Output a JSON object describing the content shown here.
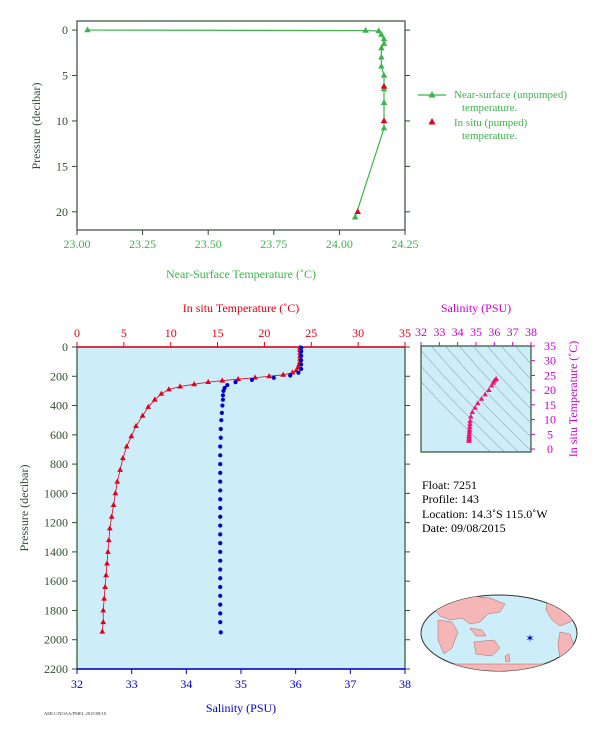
{
  "colors": {
    "green": "#3cb44b",
    "red": "#e0001b",
    "blue": "#0000cc",
    "magenta": "#cc00cc",
    "pink": "#ee1177",
    "axis_dark": "#2f4f2f",
    "plot_bg": "#cdeef8",
    "map_ocean": "#cdeef8",
    "map_land": "#f4b6b6"
  },
  "chart_data": [
    {
      "type": "line",
      "xlabel": "Near-Surface Temperature (˚C)",
      "ylabel": "Pressure (decibar)",
      "xlim": [
        23.0,
        24.25
      ],
      "ylim": [
        22,
        -1
      ],
      "x_ticks": [
        "23.00",
        "23.25",
        "23.50",
        "23.75",
        "24.00",
        "24.25"
      ],
      "y_ticks": [
        "0",
        "5",
        "10",
        "15",
        "20"
      ],
      "series": [
        {
          "name": "Near-surface (unpumped) temperature.",
          "marker": "triangle",
          "points": [
            [
              23.04,
              0.0
            ],
            [
              24.1,
              0.05
            ],
            [
              24.15,
              0.1
            ],
            [
              24.16,
              0.5
            ],
            [
              24.17,
              1.0
            ],
            [
              24.17,
              1.5
            ],
            [
              24.16,
              2.0
            ],
            [
              24.16,
              3.0
            ],
            [
              24.16,
              4.0
            ],
            [
              24.17,
              5.0
            ],
            [
              24.17,
              6.5
            ],
            [
              24.17,
              8.0
            ],
            [
              24.17,
              10.0
            ],
            [
              24.17,
              10.8
            ],
            [
              24.06,
              20.6
            ]
          ]
        },
        {
          "name": "In situ (pumped) temperature.",
          "marker": "triangle",
          "points": [
            [
              24.17,
              6.2
            ],
            [
              24.17,
              10.0
            ],
            [
              24.07,
              20.0
            ]
          ]
        }
      ],
      "legend": [
        "Near-surface (unpumped)",
        "temperature.",
        "In situ (pumped)",
        "temperature."
      ]
    },
    {
      "type": "line",
      "title": "In situ Temperature (˚C)",
      "xlabel": "Salinity (PSU)",
      "ylabel": "Pressure (decibar)",
      "temp_lim": [
        0,
        35
      ],
      "sal_lim": [
        32,
        38
      ],
      "ylim": [
        2200,
        0
      ],
      "temp_ticks": [
        "0",
        "5",
        "10",
        "15",
        "20",
        "25",
        "30",
        "35"
      ],
      "sal_ticks": [
        "32",
        "33",
        "34",
        "35",
        "36",
        "37",
        "38"
      ],
      "y_ticks": [
        "0",
        "200",
        "400",
        "600",
        "800",
        "1000",
        "1200",
        "1400",
        "1600",
        "1800",
        "2000",
        "2200"
      ],
      "temperature": [
        [
          23.8,
          5
        ],
        [
          23.8,
          20
        ],
        [
          23.8,
          40
        ],
        [
          23.8,
          60
        ],
        [
          23.8,
          80
        ],
        [
          23.8,
          100
        ],
        [
          23.7,
          120
        ],
        [
          23.6,
          140
        ],
        [
          23.4,
          160
        ],
        [
          23.0,
          175
        ],
        [
          22.0,
          190
        ],
        [
          20.5,
          200
        ],
        [
          19.0,
          210
        ],
        [
          17.2,
          220
        ],
        [
          15.5,
          230
        ],
        [
          14.0,
          240
        ],
        [
          12.5,
          255
        ],
        [
          11.0,
          270
        ],
        [
          9.8,
          290
        ],
        [
          9.0,
          320
        ],
        [
          8.3,
          360
        ],
        [
          7.6,
          410
        ],
        [
          7.0,
          470
        ],
        [
          6.3,
          540
        ],
        [
          5.8,
          610
        ],
        [
          5.3,
          680
        ],
        [
          4.9,
          760
        ],
        [
          4.6,
          840
        ],
        [
          4.3,
          920
        ],
        [
          4.1,
          1000
        ],
        [
          3.9,
          1080
        ],
        [
          3.7,
          1160
        ],
        [
          3.5,
          1240
        ],
        [
          3.4,
          1320
        ],
        [
          3.3,
          1400
        ],
        [
          3.2,
          1480
        ],
        [
          3.1,
          1560
        ],
        [
          3.0,
          1640
        ],
        [
          2.9,
          1720
        ],
        [
          2.8,
          1800
        ],
        [
          2.8,
          1880
        ],
        [
          2.7,
          1945
        ]
      ],
      "salinity": [
        [
          36.1,
          5
        ],
        [
          36.1,
          30
        ],
        [
          36.1,
          60
        ],
        [
          36.1,
          90
        ],
        [
          36.1,
          120
        ],
        [
          36.1,
          150
        ],
        [
          36.05,
          175
        ],
        [
          35.9,
          195
        ],
        [
          35.6,
          210
        ],
        [
          35.2,
          225
        ],
        [
          34.9,
          240
        ],
        [
          34.75,
          260
        ],
        [
          34.7,
          280
        ],
        [
          34.68,
          300
        ],
        [
          34.67,
          330
        ],
        [
          34.67,
          360
        ],
        [
          34.66,
          400
        ],
        [
          34.65,
          450
        ],
        [
          34.64,
          500
        ],
        [
          34.63,
          560
        ],
        [
          34.63,
          620
        ],
        [
          34.62,
          680
        ],
        [
          34.62,
          740
        ],
        [
          34.62,
          800
        ],
        [
          34.62,
          860
        ],
        [
          34.62,
          920
        ],
        [
          34.62,
          980
        ],
        [
          34.62,
          1040
        ],
        [
          34.62,
          1100
        ],
        [
          34.62,
          1160
        ],
        [
          34.62,
          1220
        ],
        [
          34.62,
          1280
        ],
        [
          34.62,
          1340
        ],
        [
          34.62,
          1400
        ],
        [
          34.62,
          1460
        ],
        [
          34.62,
          1520
        ],
        [
          34.62,
          1580
        ],
        [
          34.62,
          1640
        ],
        [
          34.62,
          1700
        ],
        [
          34.62,
          1760
        ],
        [
          34.62,
          1820
        ],
        [
          34.62,
          1880
        ],
        [
          34.63,
          1950
        ]
      ]
    },
    {
      "type": "scatter",
      "title": "Salinity (PSU)",
      "ylabel": "In situ Temperature (˚C)",
      "xlim": [
        32,
        38
      ],
      "ylim": [
        -1,
        35
      ],
      "x_ticks": [
        "32",
        "33",
        "34",
        "35",
        "36",
        "37",
        "38"
      ],
      "y_ticks": [
        "0",
        "5",
        "10",
        "15",
        "20",
        "25",
        "30",
        "35"
      ],
      "points": [
        [
          34.62,
          2.7
        ],
        [
          34.62,
          3.0
        ],
        [
          34.62,
          3.4
        ],
        [
          34.62,
          3.9
        ],
        [
          34.62,
          4.4
        ],
        [
          34.63,
          5.0
        ],
        [
          34.64,
          5.8
        ],
        [
          34.65,
          6.5
        ],
        [
          34.66,
          7.5
        ],
        [
          34.67,
          8.5
        ],
        [
          34.68,
          9.5
        ],
        [
          34.72,
          11.0
        ],
        [
          34.8,
          12.5
        ],
        [
          34.95,
          14.0
        ],
        [
          35.1,
          15.5
        ],
        [
          35.3,
          17.0
        ],
        [
          35.5,
          18.5
        ],
        [
          35.7,
          20.0
        ],
        [
          35.85,
          21.5
        ],
        [
          35.95,
          22.5
        ],
        [
          36.0,
          23.2
        ],
        [
          36.1,
          23.7
        ],
        [
          36.1,
          23.8
        ]
      ]
    }
  ],
  "float_info": {
    "float": "Float:  7251",
    "profile": "Profile:  143",
    "location": "Location:  14.3˚S  115.0˚W",
    "date": "Date:  09/08/2015"
  },
  "footer_note": "AMLC/NOAA/PMEL 2015/08/10"
}
